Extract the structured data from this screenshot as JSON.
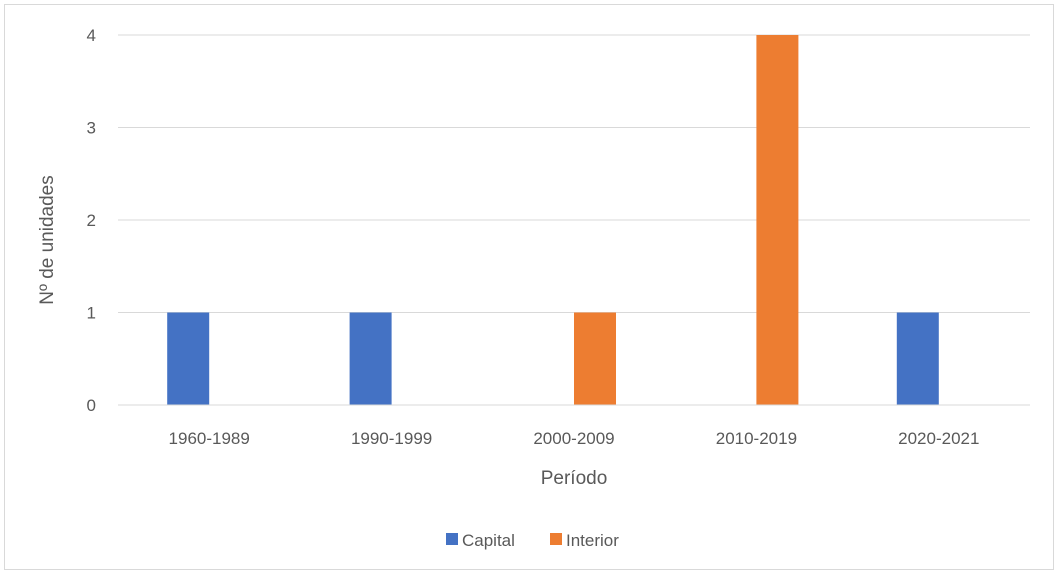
{
  "chart_data": {
    "type": "bar",
    "title": "",
    "xlabel": "Período",
    "ylabel": "Nº de unidades",
    "categories": [
      "1960-1989",
      "1990-1999",
      "2000-2009",
      "2010-2019",
      "2020-2021"
    ],
    "series": [
      {
        "name": "Capital",
        "values": [
          1,
          1,
          0,
          0,
          1
        ],
        "color": "#4472C4"
      },
      {
        "name": "Interior",
        "values": [
          0,
          0,
          1,
          4,
          0
        ],
        "color": "#ED7D31"
      }
    ],
    "ylim": [
      0,
      4
    ],
    "yticks": [
      0,
      1,
      2,
      3,
      4
    ],
    "grid": true,
    "legend_position": "bottom"
  }
}
